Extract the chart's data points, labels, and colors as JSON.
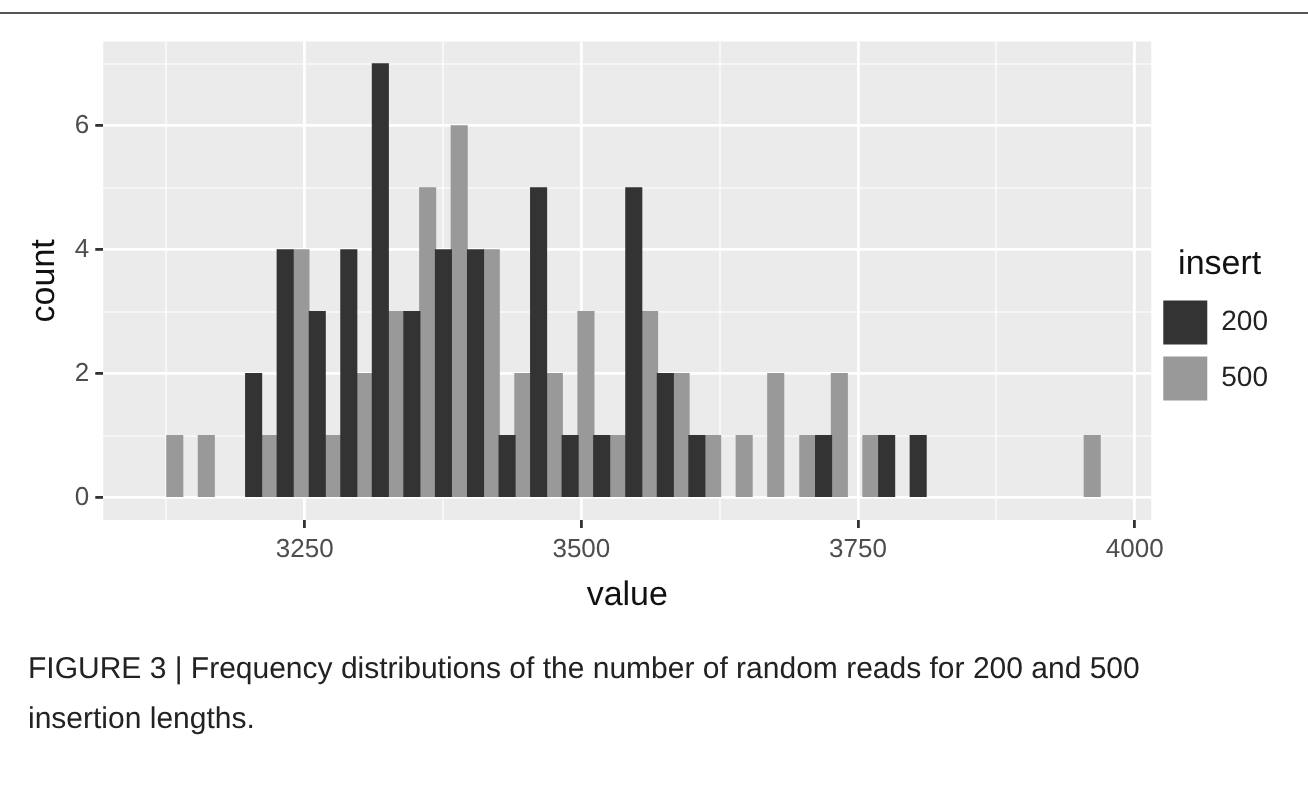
{
  "chart_data": {
    "type": "histogram",
    "xlabel": "value",
    "ylabel": "count",
    "legend_title": "insert",
    "legend": "right",
    "grid": true,
    "bins": [
      3111,
      3140,
      3168,
      3197,
      3225,
      3254,
      3283,
      3311,
      3340,
      3368,
      3397,
      3426,
      3454,
      3483,
      3511,
      3540,
      3569,
      3597,
      3626,
      3654,
      3683,
      3712,
      3740,
      3769,
      3797,
      3826,
      3940,
      3969
    ],
    "series": [
      {
        "name": "200",
        "color": "#333333",
        "values": [
          0,
          0,
          0,
          2,
          4,
          3,
          4,
          7,
          3,
          4,
          4,
          1,
          5,
          1,
          1,
          5,
          2,
          1,
          0,
          0,
          0,
          1,
          0,
          1,
          1,
          0,
          0
        ]
      },
      {
        "name": "500",
        "color": "#999999",
        "values": [
          1,
          1,
          0,
          1,
          4,
          1,
          2,
          3,
          5,
          6,
          4,
          2,
          2,
          3,
          1,
          3,
          2,
          1,
          1,
          2,
          1,
          2,
          1,
          0,
          0,
          0,
          1
        ]
      }
    ],
    "xlim": [
      3068,
      4015
    ],
    "xticks": [
      {
        "value": 3125,
        "label": null
      },
      3250,
      {
        "value": 3375,
        "label": null
      },
      3500,
      {
        "value": 3625,
        "label": null
      },
      3750,
      {
        "value": 3875,
        "label": null
      },
      4000
    ],
    "ylim": [
      -0.36,
      7.36
    ],
    "yticks": [
      0,
      {
        "value": 1,
        "label": null
      },
      2,
      {
        "value": 3,
        "label": null
      },
      4,
      {
        "value": 5,
        "label": null
      },
      6,
      {
        "value": 7,
        "label": null
      }
    ],
    "annotations": [
      "FIGURE 3 | Frequency distributions of the number of random reads for 200 and 500 insertion lengths."
    ]
  }
}
